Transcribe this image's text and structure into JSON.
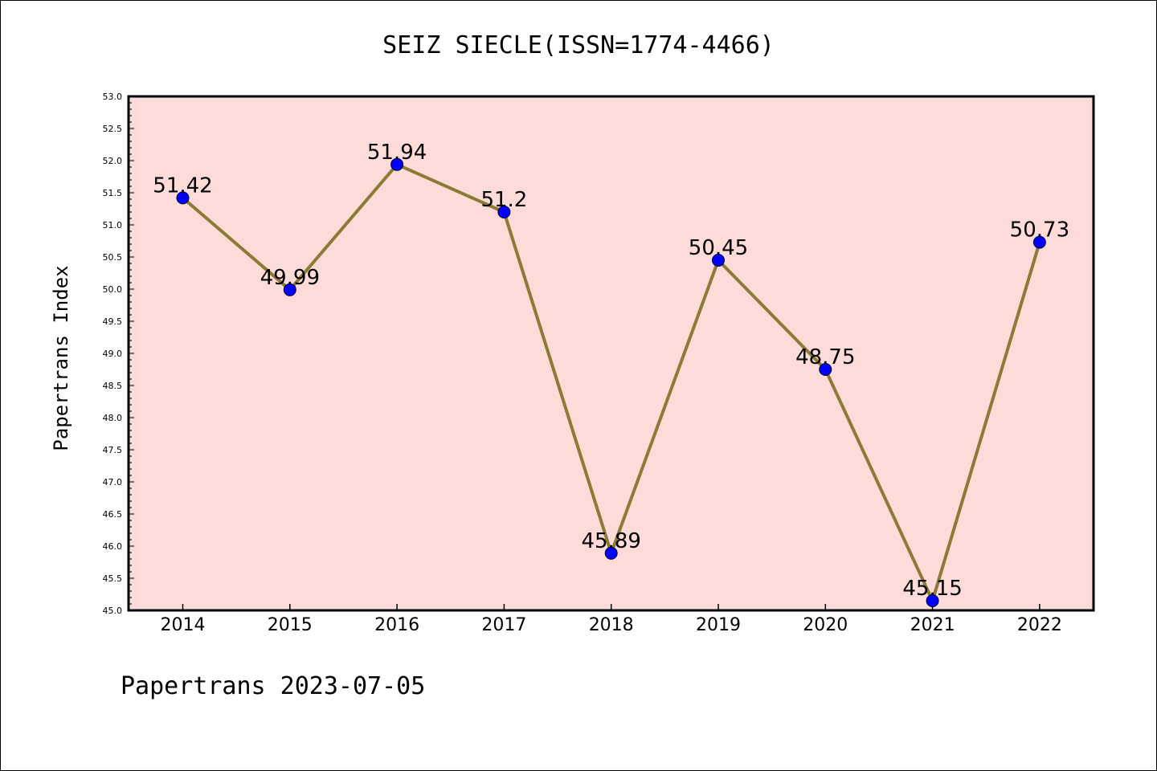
{
  "chart_data": {
    "type": "line",
    "title": "SEIZ SIECLE(ISSN=1774-4466)",
    "ylabel": "Papertrans Index",
    "xlabel": "",
    "categories": [
      "2014",
      "2015",
      "2016",
      "2017",
      "2018",
      "2019",
      "2020",
      "2021",
      "2022"
    ],
    "values": [
      51.42,
      49.99,
      51.94,
      51.2,
      45.89,
      50.45,
      48.75,
      45.15,
      50.73
    ],
    "value_labels": [
      "51.42",
      "49.99",
      "51.94",
      "51.2",
      "45.89",
      "50.45",
      "48.75",
      "45.15",
      "50.73"
    ],
    "ylim": [
      45.0,
      53.0
    ],
    "y_ticks": [
      "45.0",
      "45.5",
      "46.0",
      "46.5",
      "47.0",
      "47.5",
      "48.0",
      "48.5",
      "49.0",
      "49.5",
      "50.0",
      "50.5",
      "51.0",
      "51.5",
      "52.0",
      "52.5",
      "53.0"
    ],
    "grid": false,
    "colors": {
      "plot_background": "#fddbd9",
      "line": "#8c7a37",
      "marker": "#0000ff"
    }
  },
  "footer": "Papertrans 2023-07-05"
}
